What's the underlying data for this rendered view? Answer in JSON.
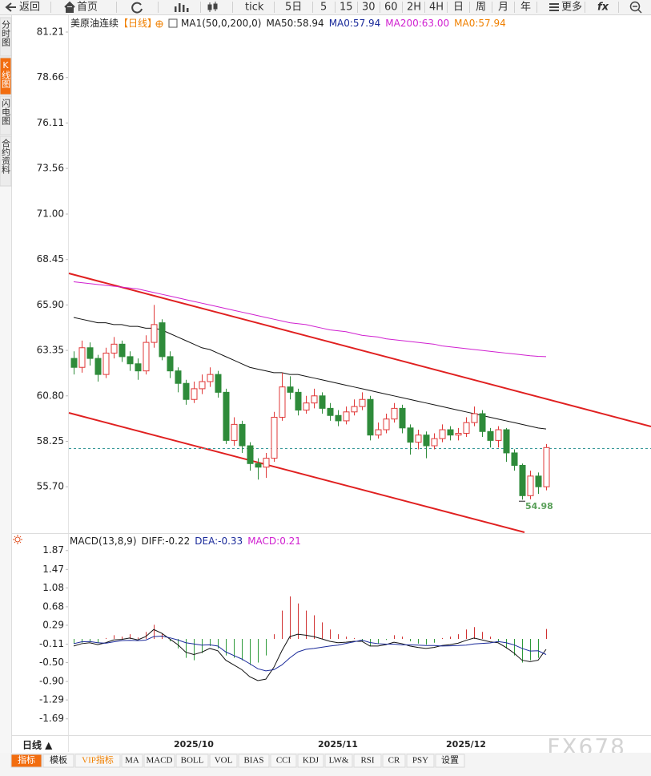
{
  "toolbar": [
    "返回",
    "首页",
    "tick",
    "5日",
    "5",
    "15",
    "30",
    "60",
    "2H",
    "4H",
    "日",
    "周",
    "月",
    "年",
    "更多",
    "fx"
  ],
  "sidebar": [
    "分时图",
    "K线图",
    "闪电图",
    "合约资料"
  ],
  "tabs": [
    "指标",
    "模板",
    "VIP指标",
    "MA",
    "MACD",
    "BOLL",
    "VOL",
    "BIAS",
    "CCI",
    "KDJ",
    "LW&",
    "RSI",
    "CR",
    "PSY",
    "设置"
  ],
  "period_button": "日线 ▲",
  "watermark": "FX678",
  "chart_data": [
    {
      "type": "candlestick",
      "instrument": "美原油连续",
      "period_tag": "【日线】",
      "legend": [
        {
          "label": "MA1(50,0,200,0)",
          "color": "#222222"
        },
        {
          "label": "MA50:58.94",
          "color": "#222222"
        },
        {
          "label": "MA0:57.94",
          "color": "#1a2a9a"
        },
        {
          "label": "MA200:63.00",
          "color": "#d020d0"
        },
        {
          "label": "MA0:57.94",
          "color": "#f08000"
        }
      ],
      "up_color": "#e03838",
      "down_color": "#2e8b3a",
      "low_label": "54.98",
      "ylim": [
        53.1,
        82.2
      ],
      "yticks": [
        81.21,
        78.66,
        76.11,
        73.56,
        {
          "value": 71,
          "label": "71.00"
        },
        68.45,
        {
          "value": 65.9,
          "label": "65.90"
        },
        63.35,
        {
          "value": 60.8,
          "label": "60.80"
        },
        58.25,
        {
          "value": 55.7,
          "label": "55.70"
        }
      ],
      "categories": [
        null,
        null,
        null,
        null,
        null,
        null,
        null,
        null,
        null,
        null,
        null,
        null,
        null,
        null,
        null,
        "2025/10",
        null,
        null,
        null,
        null,
        null,
        null,
        null,
        null,
        null,
        null,
        null,
        null,
        null,
        null,
        null,
        null,
        null,
        "2025/11",
        null,
        null,
        null,
        null,
        null,
        null,
        null,
        null,
        null,
        null,
        null,
        null,
        null,
        null,
        null,
        "2025/12",
        null,
        null,
        null,
        null,
        null,
        null,
        null,
        null,
        null,
        null
      ],
      "open": [
        62.9,
        62.4,
        63.5,
        62.9,
        62.0,
        63.2,
        63.7,
        63.0,
        62.6,
        62.2,
        63.8,
        64.9,
        63.0,
        62.2,
        61.5,
        60.6,
        61.2,
        61.6,
        62.0,
        61.0,
        58.3,
        59.2,
        58.0,
        57.0,
        56.8,
        57.3,
        59.6,
        61.3,
        61.0,
        60.0,
        60.4,
        60.8,
        60.1,
        59.7,
        59.4,
        59.9,
        60.2,
        60.6,
        58.6,
        58.9,
        59.5,
        60.1,
        59.0,
        58.2,
        58.6,
        58.0,
        58.4,
        58.9,
        58.6,
        58.7,
        59.3,
        59.8,
        58.8,
        58.3,
        58.9,
        57.6,
        56.9,
        55.2,
        56.3,
        55.7
      ],
      "high": [
        63.3,
        63.9,
        63.8,
        63.1,
        63.5,
        64.1,
        63.9,
        63.3,
        62.9,
        64.2,
        65.9,
        65.1,
        63.3,
        62.4,
        61.7,
        61.6,
        62.0,
        62.4,
        62.2,
        61.2,
        59.6,
        59.4,
        58.2,
        57.3,
        57.6,
        59.9,
        62.1,
        61.9,
        61.2,
        60.8,
        61.2,
        61.0,
        60.4,
        60.0,
        60.2,
        60.6,
        61.0,
        60.8,
        59.3,
        59.8,
        60.4,
        60.3,
        59.2,
        58.9,
        58.8,
        58.7,
        59.2,
        59.1,
        59.0,
        59.6,
        60.2,
        60.0,
        59.0,
        59.1,
        59.0,
        57.8,
        57.0,
        56.6,
        56.5,
        58.1
      ],
      "low": [
        62.0,
        62.1,
        62.5,
        61.6,
        61.8,
        62.9,
        62.7,
        62.2,
        61.7,
        62.0,
        63.5,
        62.8,
        61.8,
        61.0,
        60.3,
        60.4,
        60.9,
        61.3,
        60.7,
        58.1,
        58.0,
        57.6,
        56.6,
        56.1,
        56.2,
        57.1,
        59.4,
        60.6,
        59.7,
        59.8,
        60.1,
        59.8,
        59.4,
        59.1,
        59.2,
        59.7,
        60.0,
        58.3,
        58.4,
        58.7,
        59.3,
        58.7,
        57.5,
        57.8,
        57.3,
        57.8,
        58.2,
        58.3,
        58.3,
        58.5,
        59.1,
        58.5,
        57.9,
        57.9,
        57.1,
        56.6,
        54.98,
        55.0,
        55.3,
        55.5
      ],
      "close": [
        62.4,
        63.5,
        62.9,
        62.0,
        63.2,
        63.7,
        63.0,
        62.6,
        62.2,
        63.8,
        64.8,
        63.0,
        62.2,
        61.5,
        60.6,
        61.2,
        61.6,
        62.0,
        61.0,
        58.3,
        59.2,
        58.0,
        57.0,
        56.8,
        57.3,
        59.6,
        61.3,
        61.0,
        60.0,
        60.4,
        60.8,
        60.1,
        59.7,
        59.4,
        59.9,
        60.2,
        60.6,
        58.6,
        58.9,
        59.5,
        60.1,
        59.0,
        58.2,
        58.6,
        58.0,
        58.4,
        58.9,
        58.6,
        58.7,
        59.3,
        59.8,
        58.8,
        58.3,
        58.9,
        57.6,
        56.9,
        55.2,
        56.3,
        55.7,
        57.9
      ],
      "series": [
        {
          "color": "#111111",
          "values": [
            65.2,
            65.1,
            65.0,
            64.9,
            64.9,
            64.8,
            64.8,
            64.7,
            64.7,
            64.6,
            64.6,
            64.5,
            64.3,
            64.1,
            63.9,
            63.7,
            63.5,
            63.4,
            63.2,
            63.0,
            62.8,
            62.6,
            62.4,
            62.3,
            62.2,
            62.1,
            62.1,
            62.0,
            62.0,
            61.9,
            61.8,
            61.7,
            61.6,
            61.5,
            61.4,
            61.3,
            61.2,
            61.1,
            61.0,
            60.9,
            60.8,
            60.7,
            60.6,
            60.5,
            60.4,
            60.3,
            60.2,
            60.1,
            60.0,
            59.9,
            59.8,
            59.7,
            59.6,
            59.5,
            59.4,
            59.3,
            59.2,
            59.1,
            59.0,
            58.94
          ]
        },
        {
          "color": "#d020d0",
          "values": [
            67.2,
            67.15,
            67.1,
            67.05,
            67.0,
            66.95,
            66.9,
            66.85,
            66.8,
            66.7,
            66.6,
            66.5,
            66.4,
            66.3,
            66.2,
            66.1,
            66.0,
            65.9,
            65.8,
            65.7,
            65.6,
            65.5,
            65.4,
            65.3,
            65.2,
            65.1,
            65.0,
            64.9,
            64.85,
            64.8,
            64.7,
            64.6,
            64.5,
            64.45,
            64.4,
            64.3,
            64.2,
            64.15,
            64.1,
            64.0,
            63.95,
            63.9,
            63.85,
            63.8,
            63.75,
            63.7,
            63.6,
            63.55,
            63.5,
            63.45,
            63.4,
            63.35,
            63.3,
            63.25,
            63.2,
            63.15,
            63.1,
            63.05,
            63.02,
            63.0
          ]
        }
      ]
    },
    {
      "type": "macd",
      "legend": [
        {
          "label": "MACD(13,8,9)",
          "color": "#222222"
        },
        {
          "label": "DIFF:-0.22",
          "color": "#222222"
        },
        {
          "label": "DEA:-0.33",
          "color": "#1a2a9a"
        },
        {
          "label": "MACD:0.21",
          "color": "#d020d0"
        }
      ],
      "up_color": "#d03030",
      "down_color": "#2e9a3a",
      "ylim": [
        -2.0,
        2.12
      ],
      "yticks": [
        1.87,
        1.47,
        1.08,
        0.68,
        0.29,
        -0.11,
        {
          "value": -0.5,
          "label": "-0.50"
        },
        {
          "value": -0.9,
          "label": "-0.90"
        },
        -1.29,
        -1.69
      ],
      "histogram": [
        -0.1,
        -0.08,
        -0.05,
        -0.08,
        0.02,
        0.08,
        0.05,
        0.1,
        0.03,
        0.15,
        0.3,
        0.12,
        -0.05,
        -0.2,
        -0.4,
        -0.45,
        -0.3,
        -0.15,
        -0.2,
        -0.35,
        -0.4,
        -0.45,
        -0.55,
        -0.5,
        -0.35,
        0.1,
        0.6,
        0.9,
        0.75,
        0.6,
        0.5,
        0.35,
        0.2,
        0.1,
        0.05,
        0.02,
        -0.05,
        -0.15,
        -0.1,
        -0.02,
        0.08,
        0.05,
        -0.05,
        -0.1,
        -0.12,
        -0.08,
        0.02,
        0.05,
        0.1,
        0.2,
        0.25,
        0.15,
        0.05,
        -0.05,
        -0.2,
        -0.35,
        -0.5,
        -0.45,
        -0.4,
        0.21
      ],
      "series": [
        {
          "color": "#111111",
          "values": [
            -0.15,
            -0.1,
            -0.08,
            -0.12,
            -0.08,
            -0.02,
            -0.01,
            0.02,
            -0.02,
            0.05,
            0.2,
            0.12,
            0.0,
            -0.12,
            -0.28,
            -0.33,
            -0.28,
            -0.2,
            -0.25,
            -0.45,
            -0.55,
            -0.65,
            -0.8,
            -0.88,
            -0.85,
            -0.6,
            -0.25,
            0.05,
            0.1,
            0.08,
            0.05,
            0.0,
            -0.05,
            -0.08,
            -0.07,
            -0.05,
            -0.05,
            -0.15,
            -0.15,
            -0.12,
            -0.07,
            -0.1,
            -0.15,
            -0.18,
            -0.2,
            -0.18,
            -0.14,
            -0.12,
            -0.09,
            -0.03,
            0.02,
            -0.02,
            -0.06,
            -0.08,
            -0.18,
            -0.3,
            -0.45,
            -0.48,
            -0.45,
            -0.22
          ]
        },
        {
          "color": "#1a2a9a",
          "values": [
            -0.1,
            -0.06,
            -0.055,
            -0.08,
            -0.09,
            -0.06,
            -0.035,
            -0.03,
            -0.035,
            -0.025,
            0.05,
            0.06,
            0.025,
            -0.02,
            -0.08,
            -0.105,
            -0.13,
            -0.125,
            -0.15,
            -0.275,
            -0.35,
            -0.425,
            -0.525,
            -0.63,
            -0.675,
            -0.65,
            -0.55,
            -0.4,
            -0.275,
            -0.22,
            -0.2,
            -0.175,
            -0.15,
            -0.13,
            -0.095,
            -0.06,
            -0.025,
            -0.075,
            -0.1,
            -0.11,
            -0.11,
            -0.125,
            -0.125,
            -0.13,
            -0.14,
            -0.14,
            -0.15,
            -0.145,
            -0.14,
            -0.13,
            -0.105,
            -0.095,
            -0.085,
            -0.055,
            -0.08,
            -0.125,
            -0.2,
            -0.255,
            -0.25,
            -0.33
          ]
        }
      ]
    }
  ]
}
